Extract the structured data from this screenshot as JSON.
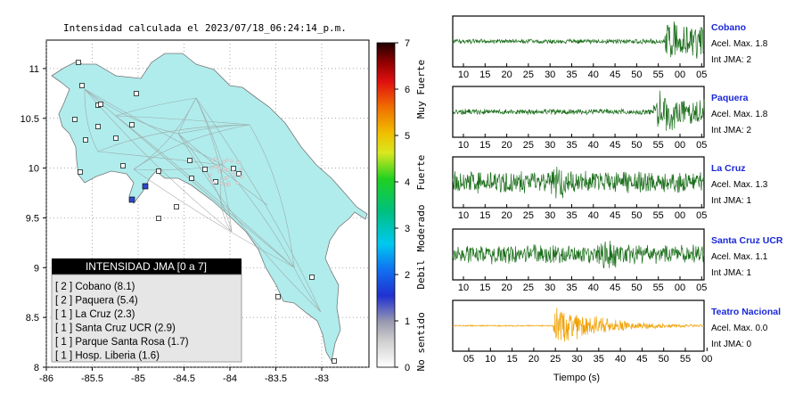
{
  "map": {
    "title": "Intensidad calculada el 2023/07/18_06:24:14_p.m.",
    "chart_data": {
      "type": "map",
      "xlim": [
        -86,
        -82.5
      ],
      "ylim": [
        8,
        11.3
      ],
      "xticks": [
        "-86",
        "-85.5",
        "-85",
        "-84.5",
        "-84",
        "-83.5",
        "-83"
      ],
      "yticks": [
        "8",
        "8.5",
        "9",
        "9.5",
        "10",
        "10.5",
        "11"
      ]
    },
    "colorbar": {
      "ticks": [
        "0",
        "1",
        "2",
        "3",
        "4",
        "5",
        "6",
        "7"
      ],
      "labels": [
        "No sentido",
        "Debil",
        "Moderado",
        "Fuerte",
        "Muy Fuerte"
      ]
    },
    "legend": {
      "title": "INTENSIDAD JMA [0 a 7]",
      "items": [
        "[ 2 ]  Cobano (8.1)",
        "[ 2 ]  Paquera (5.4)",
        "[ 1 ]  La Cruz (2.3)",
        "[ 1 ]  Santa Cruz UCR (2.9)",
        "[ 1 ]  Parque Santa Rosa (1.7)",
        "[ 1 ]  Hosp. Liberia (1.6)"
      ]
    }
  },
  "waveforms": {
    "xlabel": "Tiempo (s)",
    "top_ticks": [
      "10",
      "15",
      "20",
      "25",
      "30",
      "35",
      "40",
      "45",
      "50",
      "55",
      "00",
      "05"
    ],
    "bottom_ticks": [
      "05",
      "10",
      "15",
      "20",
      "25",
      "30",
      "35",
      "40",
      "45",
      "50",
      "55",
      "00"
    ],
    "stations": [
      {
        "name": "Cobano",
        "acel": "Acel. Max. 1.8",
        "jma": "Int JMA: 2",
        "color": "#1a6e1a",
        "event_start": 0.84,
        "amp": 0.95,
        "pre": 0.1
      },
      {
        "name": "Paquera",
        "acel": "Acel. Max. 1.8",
        "jma": "Int JMA: 2",
        "color": "#1a6e1a",
        "event_start": 0.8,
        "amp": 0.95,
        "pre": 0.12
      },
      {
        "name": "La Cruz",
        "acel": "Acel. Max. 1.3",
        "jma": "Int JMA: 1",
        "color": "#1a6e1a",
        "event_start": 0.38,
        "amp": 0.95,
        "pre": 0.45
      },
      {
        "name": "Santa Cruz UCR",
        "acel": "Acel. Max. 1.1",
        "jma": "Int JMA: 1",
        "color": "#1a6e1a",
        "event_start": 0.58,
        "amp": 0.95,
        "pre": 0.4
      },
      {
        "name": "Teatro Nacional",
        "acel": "Acel. Max. 0.0",
        "jma": "Int JMA: 0",
        "color": "#f0a000",
        "event_start": 0.4,
        "amp": 0.95,
        "pre": 0.03
      }
    ]
  }
}
